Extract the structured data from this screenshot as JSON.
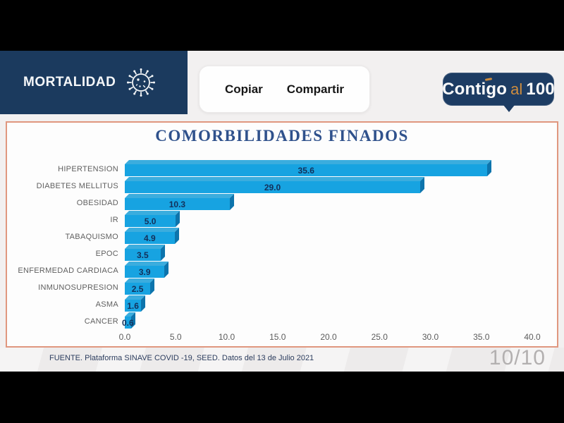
{
  "header": {
    "title": "MORTALIDAD",
    "actions": {
      "copy": "Copiar",
      "share": "Compartir"
    },
    "logo": {
      "part1": "Contigo",
      "part2": "al",
      "part3": "100",
      "bg_color": "#1d3c63",
      "accent_color": "#cf8d3e"
    }
  },
  "chart_data": {
    "type": "bar",
    "orientation": "horizontal",
    "title": "COMORBILIDADES FINADOS",
    "categories": [
      "HIPERTENSION",
      "DIABETES MELLITUS",
      "OBESIDAD",
      "IR",
      "TABAQUISMO",
      "EPOC",
      "ENFERMEDAD CARDIACA",
      "INMUNOSUPRESION",
      "ASMA",
      "CANCER"
    ],
    "values": [
      35.6,
      29.0,
      10.3,
      5.0,
      4.9,
      3.5,
      3.9,
      2.5,
      1.6,
      0.6
    ],
    "value_labels": [
      "35.6",
      "29.0",
      "10.3",
      "5.0",
      "4.9",
      "3.5",
      "3.9",
      "2.5",
      "1.6",
      "0.6"
    ],
    "xlabel": "",
    "ylabel": "",
    "xlim": [
      0,
      40
    ],
    "x_ticks": [
      "0.0",
      "5.0",
      "10.0",
      "15.0",
      "20.0",
      "25.0",
      "30.0",
      "35.0",
      "40.0"
    ],
    "grid": false,
    "legend": false,
    "bar_color": "#17a3e1",
    "bar_top_color": "#3badde",
    "bar_side_color": "#0d74ac",
    "value_label_color": "#13305a",
    "title_color": "#2f518c"
  },
  "footer": {
    "source_note": "FUENTE. Plataforma SINAVE COVID -19, SEED. Datos del 13 de Julio 2021",
    "page_indicator": "10/10"
  },
  "colors": {
    "brand_navy": "#1b3a5e",
    "card_border_salmon": "#e0977f",
    "band_background": "#f2f0f0",
    "letterbox": "#000000"
  }
}
